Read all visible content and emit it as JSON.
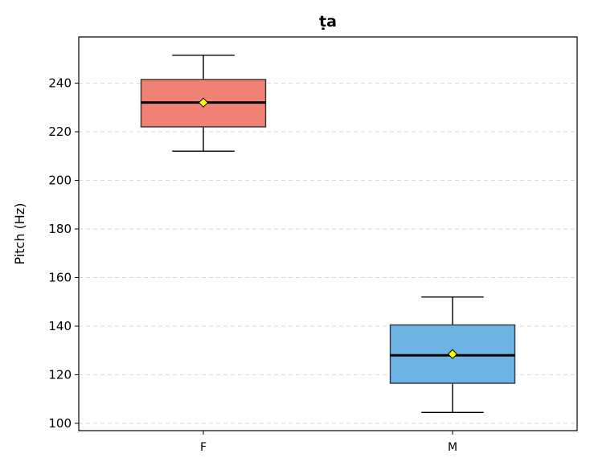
{
  "chart_data": {
    "type": "box",
    "title": "ṭa",
    "xlabel": "",
    "ylabel": "Pitch (Hz)",
    "ylim": [
      97,
      259
    ],
    "yticks": [
      100,
      120,
      140,
      160,
      180,
      200,
      220,
      240
    ],
    "grid": "horizontal dashed",
    "categories": [
      "F",
      "M"
    ],
    "boxes": [
      {
        "category": "F",
        "whisker_low": 212,
        "q1": 222,
        "median": 232,
        "mean": 232,
        "q3": 241.5,
        "whisker_high": 251.5,
        "color": "#f08275"
      },
      {
        "category": "M",
        "whisker_low": 104.5,
        "q1": 116.5,
        "median": 128,
        "mean": 128.5,
        "q3": 140.5,
        "whisker_high": 152,
        "color": "#6cb4e4"
      }
    ],
    "mean_marker_color": "#ffff00"
  }
}
